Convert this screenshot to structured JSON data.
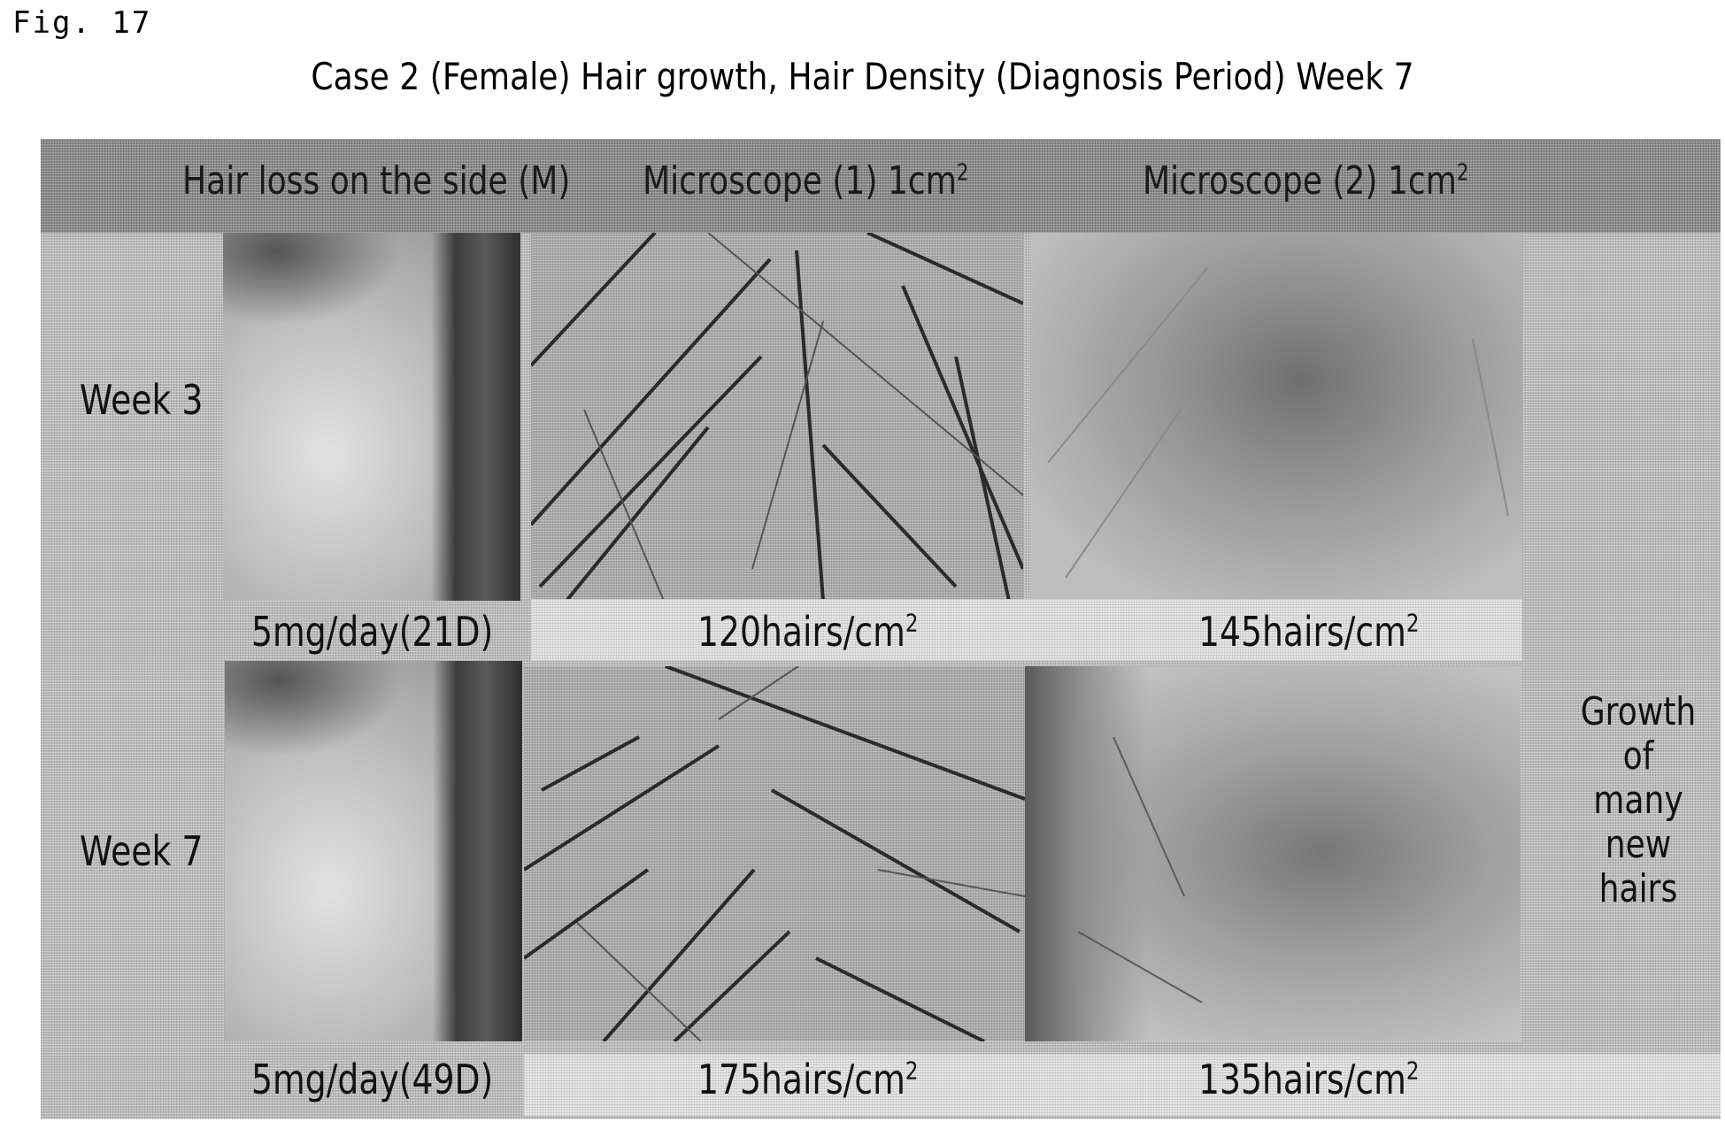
{
  "figure_label": "Fig. 17",
  "title": "Case 2 (Female) Hair growth, Hair Density (Diagnosis Period) Week 7",
  "headers": {
    "side": "Hair loss on the side (M)",
    "micro1": "Microscope (1) 1cm",
    "micro2": "Microscope (2) 1cm",
    "unit_sup": "2"
  },
  "rows": [
    {
      "label": "Week 3",
      "dose": "5mg/day(21D)",
      "micro1_count": "120hairs/cm",
      "micro2_count": "145hairs/cm"
    },
    {
      "label": "Week 7",
      "dose": "5mg/day(49D)",
      "micro1_count": "175hairs/cm",
      "micro2_count": "135hairs/cm"
    }
  ],
  "note": "Growth of many new hairs"
}
